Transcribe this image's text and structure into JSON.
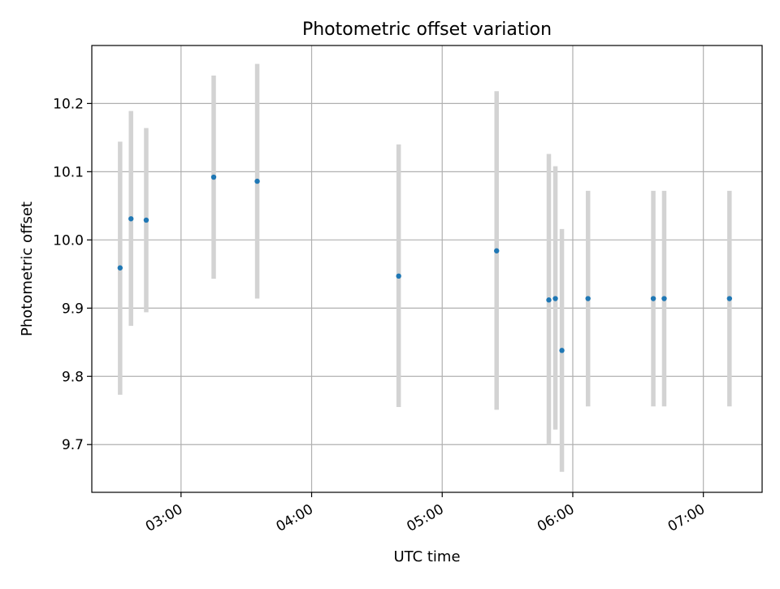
{
  "chart_data": {
    "type": "scatter",
    "title": "Photometric offset variation",
    "xlabel": "UTC time",
    "ylabel": "Photometric offset",
    "x_type": "time",
    "xlim": [
      "02:19",
      "07:27"
    ],
    "ylim": [
      9.63,
      10.285
    ],
    "x_ticks": [
      "03:00",
      "04:00",
      "05:00",
      "06:00",
      "07:00"
    ],
    "y_ticks": [
      "9.7",
      "9.8",
      "9.9",
      "10.0",
      "10.1",
      "10.2"
    ],
    "grid": true,
    "colors": {
      "point": "#1f77b4",
      "errorbar": "#d3d3d3",
      "grid": "#b0b0b0",
      "axes": "#000000"
    },
    "series": [
      {
        "points": [
          {
            "x": "02:32",
            "y": 9.959,
            "low": 9.773,
            "high": 10.144
          },
          {
            "x": "02:37",
            "y": 10.031,
            "low": 9.874,
            "high": 10.189
          },
          {
            "x": "02:44",
            "y": 10.029,
            "low": 9.894,
            "high": 10.164
          },
          {
            "x": "03:15",
            "y": 10.092,
            "low": 9.943,
            "high": 10.241
          },
          {
            "x": "03:35",
            "y": 10.086,
            "low": 9.914,
            "high": 10.258
          },
          {
            "x": "04:40",
            "y": 9.947,
            "low": 9.755,
            "high": 10.14
          },
          {
            "x": "05:25",
            "y": 9.984,
            "low": 9.751,
            "high": 10.218
          },
          {
            "x": "05:49",
            "y": 9.912,
            "low": 9.7,
            "high": 10.126
          },
          {
            "x": "05:52",
            "y": 9.914,
            "low": 9.722,
            "high": 10.108
          },
          {
            "x": "05:55",
            "y": 9.838,
            "low": 9.66,
            "high": 10.016
          },
          {
            "x": "06:07",
            "y": 9.914,
            "low": 9.756,
            "high": 10.072
          },
          {
            "x": "06:37",
            "y": 9.914,
            "low": 9.756,
            "high": 10.072
          },
          {
            "x": "06:42",
            "y": 9.914,
            "low": 9.756,
            "high": 10.072
          },
          {
            "x": "07:12",
            "y": 9.914,
            "low": 9.756,
            "high": 10.072
          }
        ]
      }
    ]
  }
}
